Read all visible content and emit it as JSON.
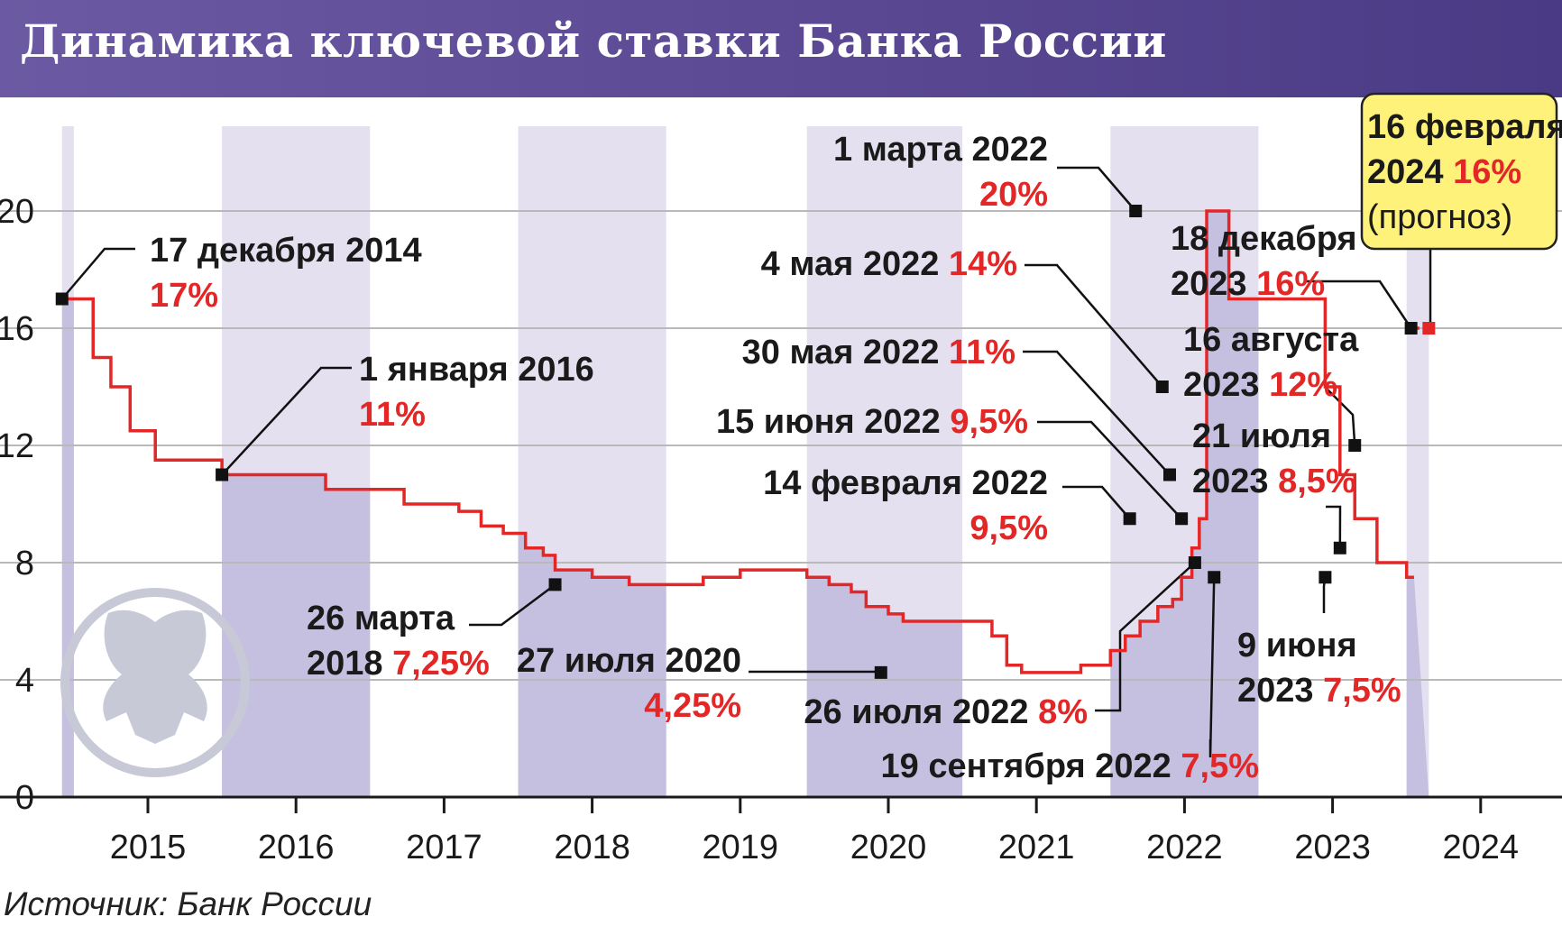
{
  "title": "Динамика ключевой ставки Банка России",
  "source": "Источник: Банк России",
  "colors": {
    "header": "#5a4892",
    "line": "#e32626",
    "band_light": "#e4e0f0",
    "band_dark": "#c6c0e0",
    "grid": "#b9b9b9",
    "forecast_box": "#fff27a",
    "emblem": "#c7c9d6"
  },
  "emblem_icon": "double-headed-eagle-icon",
  "chart_data": {
    "type": "line",
    "step": true,
    "ylim": [
      0,
      23
    ],
    "yticks": [
      0,
      4,
      8,
      12,
      16,
      20
    ],
    "xlim": [
      2014.4,
      2024.5
    ],
    "xticks": [
      2015,
      2016,
      2017,
      2018,
      2019,
      2020,
      2021,
      2022,
      2023,
      2024
    ],
    "grid": true,
    "series": [
      {
        "x": [
          2014.42,
          2014.5,
          2014.63,
          2014.75,
          2014.88,
          2015.05,
          2015.5,
          2015.9,
          2016.2,
          2016.5,
          2016.73,
          2016.85,
          2017.1,
          2017.25,
          2017.4,
          2017.55,
          2017.67,
          2017.75,
          2018.0,
          2018.25,
          2018.5,
          2018.75,
          2019.0,
          2019.15,
          2019.3,
          2019.45,
          2019.6,
          2019.75,
          2019.85,
          2020.0,
          2020.1,
          2020.7,
          2020.8,
          2020.9,
          2021.0,
          2021.15,
          2021.3,
          2021.5,
          2021.6,
          2021.7,
          2021.82,
          2021.92,
          2021.98,
          2022.05,
          2022.1,
          2022.15,
          2022.2,
          2022.3,
          2022.95,
          2023.05,
          2023.15,
          2023.3,
          2023.5,
          2023.55
        ],
        "y": [
          17,
          17,
          15,
          14,
          12.5,
          11.5,
          11,
          11,
          10.5,
          10.5,
          10,
          10,
          9.75,
          9.25,
          9,
          8.5,
          8.25,
          7.75,
          7.5,
          7.25,
          7.25,
          7.5,
          7.75,
          7.75,
          7.75,
          7.5,
          7.25,
          7,
          6.5,
          6.25,
          6,
          5.5,
          4.5,
          4.25,
          4.25,
          4.25,
          4.5,
          5,
          5.5,
          6,
          6.5,
          6.75,
          7.5,
          8.5,
          9.5,
          20,
          20,
          17,
          14,
          11,
          9.5,
          8,
          7.5,
          7.5
        ]
      }
    ],
    "forecast": {
      "x": [
        2023.55,
        2023.65
      ],
      "y": [
        16,
        16
      ]
    },
    "markers": [
      {
        "x": 2014.42,
        "y": 17
      },
      {
        "x": 2015.5,
        "y": 11
      },
      {
        "x": 2017.75,
        "y": 7.25
      },
      {
        "x": 2019.95,
        "y": 4.25
      },
      {
        "x": 2021.63,
        "y": 9.5
      },
      {
        "x": 2021.67,
        "y": 20
      },
      {
        "x": 2021.85,
        "y": 14
      },
      {
        "x": 2021.9,
        "y": 11
      },
      {
        "x": 2021.98,
        "y": 9.5
      },
      {
        "x": 2022.07,
        "y": 8
      },
      {
        "x": 2022.2,
        "y": 7.5
      },
      {
        "x": 2022.95,
        "y": 7.5
      },
      {
        "x": 2023.05,
        "y": 8.5
      },
      {
        "x": 2023.15,
        "y": 12
      },
      {
        "x": 2023.53,
        "y": 16
      }
    ],
    "forecast_marker": {
      "x": 2023.65,
      "y": 16
    },
    "annotations": [
      {
        "date": "17 декабря 2014",
        "rate": "17%"
      },
      {
        "date": "1 января 2016",
        "rate": "11%"
      },
      {
        "date_line1": "26 марта",
        "date_line2": "2018",
        "rate": "7,25%"
      },
      {
        "date": "27 июля 2020",
        "rate": "4,25%"
      },
      {
        "date": "14 февраля 2022",
        "rate": "9,5%"
      },
      {
        "date": "1 марта 2022",
        "rate": "20%"
      },
      {
        "date": "4 мая 2022",
        "rate": "14%"
      },
      {
        "date": "30 мая 2022",
        "rate": "11%"
      },
      {
        "date": "15 июня 2022",
        "rate": "9,5%"
      },
      {
        "date": "26 июля 2022",
        "rate": "8%"
      },
      {
        "date": "19 сентября 2022",
        "rate": "7,5%"
      },
      {
        "date_line1": "9 июня",
        "date_line2": "2023",
        "rate": "7,5%"
      },
      {
        "date_line1": "21 июля",
        "date_line2": "2023",
        "rate": "8,5%"
      },
      {
        "date_line1": "16 августа",
        "date_line2": "2023",
        "rate": "12%"
      },
      {
        "date_line1": "18 декабря",
        "date_line2": "2023",
        "rate": "16%"
      },
      {
        "date_line1": "16 февраля",
        "date_line2": "2024",
        "rate": "16%",
        "note": "(прогноз)"
      }
    ]
  }
}
